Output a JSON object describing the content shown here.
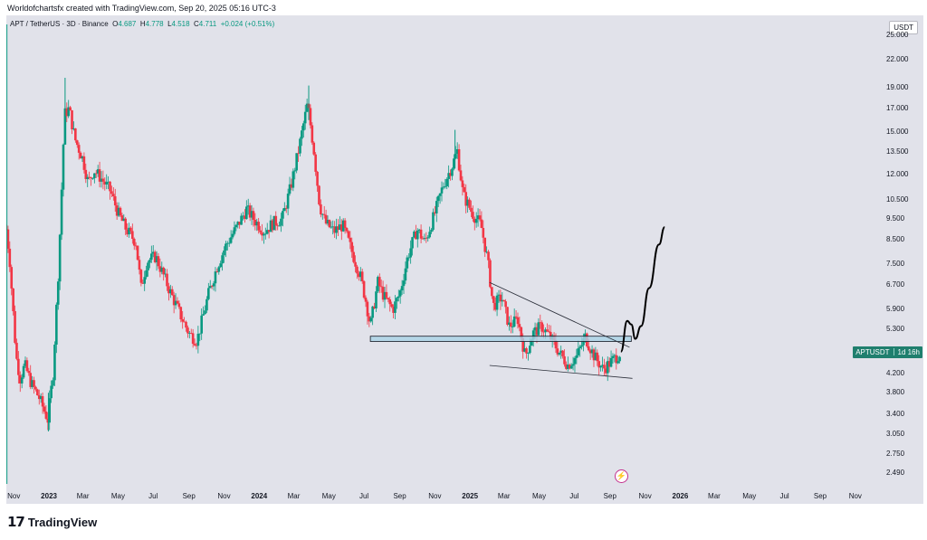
{
  "credit": "Worldofchartsfx created with TradingView.com, Sep 20, 2025 05:16 UTC-3",
  "symbol": {
    "name": "APT / TetherUS · 3D · Binance",
    "o_label": "O",
    "o": "4.687",
    "h_label": "H",
    "h": "4.778",
    "l_label": "L",
    "l": "4.518",
    "c_label": "C",
    "c": "4.711",
    "change": "+0.024 (+0.51%)"
  },
  "currency": "USDT",
  "price_tag": {
    "symbol": "APTUSDT",
    "countdown": "1d 16h",
    "color": "#1f7f6e"
  },
  "footer": {
    "brand": "TradingView"
  },
  "colors": {
    "up": "#089981",
    "down": "#f23645",
    "background": "#e1e2ea",
    "zone": "#a9d3e6"
  },
  "icons": {
    "flash": "lightning-icon",
    "logo": "tradingview-logo-icon"
  },
  "chart_data": {
    "type": "candlestick",
    "title": "",
    "y_scale": "log",
    "ylim": [
      2.35,
      26.5
    ],
    "y_ticks": [
      "25.000",
      "22.000",
      "19.000",
      "17.000",
      "15.000",
      "13.500",
      "12.000",
      "10.500",
      "9.500",
      "8.500",
      "7.500",
      "6.700",
      "5.900",
      "5.300",
      "4.200",
      "3.800",
      "3.400",
      "3.050",
      "2.750",
      "2.490"
    ],
    "x_range": [
      "2022-10-19",
      "2026-12-20"
    ],
    "x_ticks": [
      {
        "label": "Nov",
        "date": "2022-11-01",
        "bold": false
      },
      {
        "label": "2023",
        "date": "2023-01-01",
        "bold": true
      },
      {
        "label": "Mar",
        "date": "2023-03-01",
        "bold": false
      },
      {
        "label": "May",
        "date": "2023-05-01",
        "bold": false
      },
      {
        "label": "Jul",
        "date": "2023-07-01",
        "bold": false
      },
      {
        "label": "Sep",
        "date": "2023-09-01",
        "bold": false
      },
      {
        "label": "Nov",
        "date": "2023-11-01",
        "bold": false
      },
      {
        "label": "2024",
        "date": "2024-01-01",
        "bold": true
      },
      {
        "label": "Mar",
        "date": "2024-03-01",
        "bold": false
      },
      {
        "label": "May",
        "date": "2024-05-01",
        "bold": false
      },
      {
        "label": "Jul",
        "date": "2024-07-01",
        "bold": false
      },
      {
        "label": "Sep",
        "date": "2024-09-01",
        "bold": false
      },
      {
        "label": "Nov",
        "date": "2024-11-01",
        "bold": false
      },
      {
        "label": "2025",
        "date": "2025-01-01",
        "bold": true
      },
      {
        "label": "Mar",
        "date": "2025-03-01",
        "bold": false
      },
      {
        "label": "May",
        "date": "2025-05-01",
        "bold": false
      },
      {
        "label": "Jul",
        "date": "2025-07-01",
        "bold": false
      },
      {
        "label": "Sep",
        "date": "2025-09-01",
        "bold": false
      },
      {
        "label": "Nov",
        "date": "2025-11-01",
        "bold": false
      },
      {
        "label": "2026",
        "date": "2026-01-01",
        "bold": true
      },
      {
        "label": "Mar",
        "date": "2026-03-01",
        "bold": false
      },
      {
        "label": "May",
        "date": "2026-05-01",
        "bold": false
      },
      {
        "label": "Jul",
        "date": "2026-07-01",
        "bold": false
      },
      {
        "label": "Sep",
        "date": "2026-09-01",
        "bold": false
      },
      {
        "label": "Nov",
        "date": "2026-11-01",
        "bold": false
      }
    ],
    "price_path": [
      [
        "2022-10-19",
        9.0
      ],
      [
        "2022-10-25",
        7.6
      ],
      [
        "2022-11-05",
        4.6
      ],
      [
        "2022-11-12",
        4.1
      ],
      [
        "2022-11-20",
        4.4
      ],
      [
        "2022-12-01",
        4.0
      ],
      [
        "2022-12-15",
        3.7
      ],
      [
        "2022-12-30",
        3.3
      ],
      [
        "2023-01-08",
        4.2
      ],
      [
        "2023-01-18",
        7.5
      ],
      [
        "2023-01-28",
        16.5
      ],
      [
        "2023-02-05",
        17.0
      ],
      [
        "2023-02-15",
        14.5
      ],
      [
        "2023-03-01",
        13.0
      ],
      [
        "2023-03-10",
        11.5
      ],
      [
        "2023-03-20",
        12.3
      ],
      [
        "2023-04-01",
        11.8
      ],
      [
        "2023-04-18",
        11.0
      ],
      [
        "2023-05-01",
        9.8
      ],
      [
        "2023-05-15",
        9.0
      ],
      [
        "2023-06-01",
        8.4
      ],
      [
        "2023-06-10",
        6.6
      ],
      [
        "2023-06-20",
        7.6
      ],
      [
        "2023-07-05",
        7.8
      ],
      [
        "2023-07-20",
        7.0
      ],
      [
        "2023-08-01",
        6.4
      ],
      [
        "2023-08-18",
        5.7
      ],
      [
        "2023-09-01",
        5.2
      ],
      [
        "2023-09-15",
        5.0
      ],
      [
        "2023-10-05",
        6.4
      ],
      [
        "2023-10-20",
        7.4
      ],
      [
        "2023-11-05",
        8.3
      ],
      [
        "2023-11-25",
        9.2
      ],
      [
        "2023-12-10",
        10.0
      ],
      [
        "2023-12-25",
        9.4
      ],
      [
        "2024-01-10",
        8.9
      ],
      [
        "2024-01-25",
        9.3
      ],
      [
        "2024-02-10",
        9.5
      ],
      [
        "2024-02-25",
        11.3
      ],
      [
        "2024-03-10",
        13.8
      ],
      [
        "2024-03-25",
        17.5
      ],
      [
        "2024-04-05",
        13.6
      ],
      [
        "2024-04-15",
        10.2
      ],
      [
        "2024-04-25",
        9.3
      ],
      [
        "2024-05-10",
        8.9
      ],
      [
        "2024-05-25",
        9.2
      ],
      [
        "2024-06-10",
        8.0
      ],
      [
        "2024-06-25",
        7.0
      ],
      [
        "2024-07-05",
        6.1
      ],
      [
        "2024-07-12",
        5.4
      ],
      [
        "2024-07-25",
        6.8
      ],
      [
        "2024-08-05",
        6.3
      ],
      [
        "2024-08-20",
        5.9
      ],
      [
        "2024-09-01",
        6.4
      ],
      [
        "2024-09-15",
        7.8
      ],
      [
        "2024-10-01",
        9.0
      ],
      [
        "2024-10-15",
        8.4
      ],
      [
        "2024-11-01",
        9.8
      ],
      [
        "2024-11-15",
        11.3
      ],
      [
        "2024-12-01",
        12.6
      ],
      [
        "2024-12-10",
        13.6
      ],
      [
        "2024-12-20",
        10.8
      ],
      [
        "2025-01-05",
        9.8
      ],
      [
        "2025-01-20",
        9.2
      ],
      [
        "2025-02-01",
        7.6
      ],
      [
        "2025-02-10",
        6.0
      ],
      [
        "2025-02-25",
        6.3
      ],
      [
        "2025-03-10",
        5.4
      ],
      [
        "2025-03-25",
        5.6
      ],
      [
        "2025-04-07",
        4.6
      ],
      [
        "2025-04-20",
        5.2
      ],
      [
        "2025-05-05",
        5.4
      ],
      [
        "2025-05-20",
        5.1
      ],
      [
        "2025-06-05",
        4.7
      ],
      [
        "2025-06-20",
        4.4
      ],
      [
        "2025-07-05",
        4.6
      ],
      [
        "2025-07-20",
        5.1
      ],
      [
        "2025-08-05",
        4.6
      ],
      [
        "2025-08-20",
        4.3
      ],
      [
        "2025-09-05",
        4.5
      ],
      [
        "2025-09-20",
        4.711
      ]
    ],
    "wick_extremes": [
      {
        "date": "2022-10-20",
        "low": 2.35,
        "high": 26.5
      },
      {
        "date": "2023-01-29",
        "low": 14.5,
        "high": 20.0
      },
      {
        "date": "2024-03-27",
        "low": 16.0,
        "high": 19.2
      },
      {
        "date": "2024-12-06",
        "low": 12.4,
        "high": 15.2
      },
      {
        "date": "2022-12-31",
        "low": 3.1,
        "high": 3.8
      }
    ],
    "annotations": {
      "support_zone": {
        "from": "2024-07-12",
        "to": "2025-10-08",
        "low": 4.98,
        "high": 5.12
      },
      "upper_trendline": [
        [
          "2025-02-04",
          6.8
        ],
        [
          "2025-10-05",
          4.83
        ]
      ],
      "lower_trendline": [
        [
          "2025-02-04",
          4.39
        ],
        [
          "2025-10-10",
          4.1
        ]
      ],
      "projection": [
        [
          "2025-09-20",
          4.72
        ],
        [
          "2025-10-01",
          5.55
        ],
        [
          "2025-10-08",
          5.45
        ],
        [
          "2025-10-15",
          5.05
        ],
        [
          "2025-10-25",
          5.4
        ],
        [
          "2025-11-08",
          6.6
        ],
        [
          "2025-11-25",
          8.3
        ],
        [
          "2025-12-05",
          9.1
        ]
      ]
    }
  }
}
